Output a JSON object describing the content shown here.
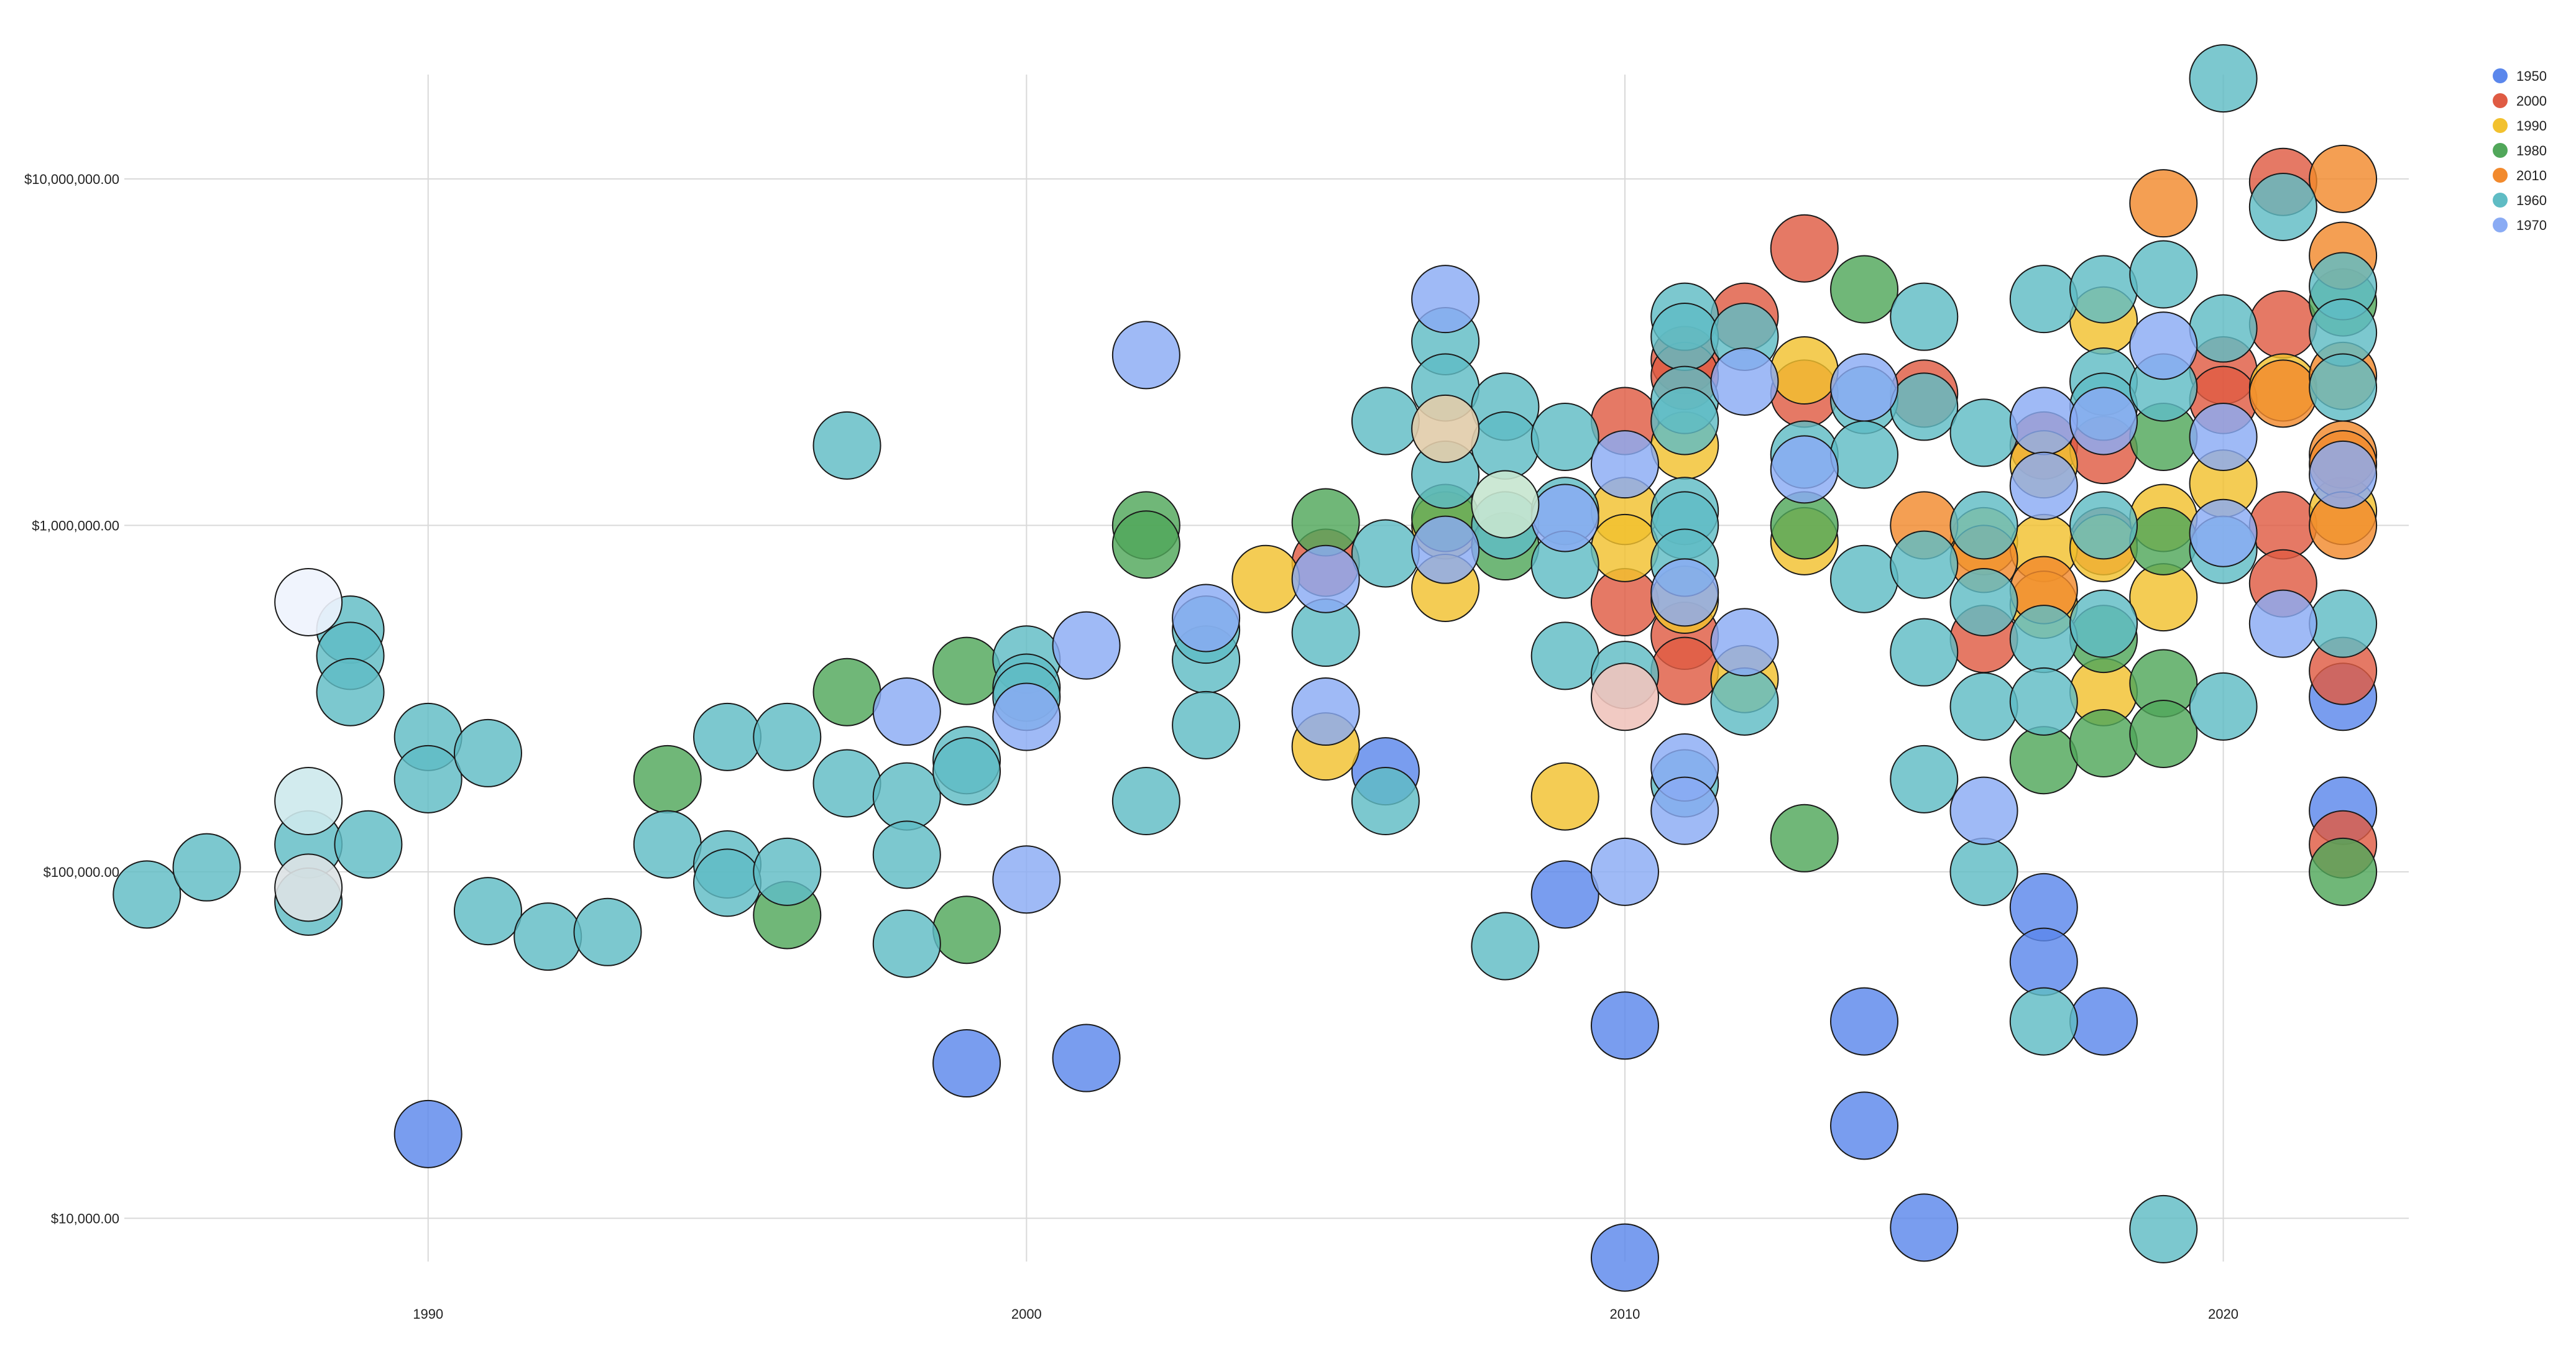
{
  "chart_data": {
    "type": "scatter",
    "subtype": "bubble",
    "title": "",
    "xlabel": "",
    "ylabel": "",
    "y_scale": "log",
    "xlim": [
      1984.3,
      2023.1
    ],
    "ylim": [
      7500,
      20000000
    ],
    "x_ticks": [
      {
        "value": 1990,
        "label": "1990"
      },
      {
        "value": 2000,
        "label": "2000"
      },
      {
        "value": 2010,
        "label": "2010"
      },
      {
        "value": 2020,
        "label": "2020"
      }
    ],
    "y_ticks": [
      {
        "value": 10000,
        "label": "$10,000.00"
      },
      {
        "value": 100000,
        "label": "$100,000.00"
      },
      {
        "value": 1000000,
        "label": "$1,000,000.00"
      },
      {
        "value": 10000000,
        "label": "$10,000,000.00"
      }
    ],
    "grid": true,
    "legend_position": "top-right",
    "series": [
      {
        "name": "1950",
        "color": "#5b87ec",
        "points": [
          [
            1990,
            17500
          ],
          [
            1999,
            28000
          ],
          [
            2001,
            29000
          ],
          [
            2006,
            195000
          ],
          [
            2009,
            86000
          ],
          [
            2010,
            36000
          ],
          [
            2010,
            7700
          ],
          [
            2014,
            37000
          ],
          [
            2014,
            18500
          ],
          [
            2015,
            9400
          ],
          [
            2017,
            79000
          ],
          [
            2017,
            55000
          ],
          [
            2018,
            37000
          ],
          [
            2022,
            150000
          ],
          [
            2022,
            320000
          ]
        ]
      },
      {
        "name": "2000",
        "color": "#df5b43",
        "points": [
          [
            2005,
            780000
          ],
          [
            2010,
            2000000
          ],
          [
            2010,
            600000
          ],
          [
            2011,
            3000000
          ],
          [
            2011,
            2700000
          ],
          [
            2011,
            480000
          ],
          [
            2011,
            380000
          ],
          [
            2012,
            4000000
          ],
          [
            2013,
            6300000
          ],
          [
            2013,
            2400000
          ],
          [
            2015,
            2400000
          ],
          [
            2016,
            470000
          ],
          [
            2017,
            1700000
          ],
          [
            2018,
            1650000
          ],
          [
            2018,
            900000
          ],
          [
            2020,
            2800000
          ],
          [
            2020,
            2300000
          ],
          [
            2021,
            9800000
          ],
          [
            2021,
            3800000
          ],
          [
            2021,
            1000000
          ],
          [
            2021,
            680000
          ],
          [
            2022,
            380000
          ],
          [
            2022,
            120000
          ]
        ]
      },
      {
        "name": "1990",
        "color": "#f2c12e",
        "points": [
          [
            2004,
            700000
          ],
          [
            2005,
            230000
          ],
          [
            2007,
            1000000
          ],
          [
            2007,
            660000
          ],
          [
            2009,
            165000
          ],
          [
            2010,
            1100000
          ],
          [
            2010,
            860000
          ],
          [
            2011,
            1700000
          ],
          [
            2011,
            610000
          ],
          [
            2012,
            360000
          ],
          [
            2013,
            2800000
          ],
          [
            2013,
            900000
          ],
          [
            2016,
            900000
          ],
          [
            2017,
            1500000
          ],
          [
            2017,
            860000
          ],
          [
            2017,
            590000
          ],
          [
            2018,
            3900000
          ],
          [
            2018,
            860000
          ],
          [
            2018,
            330000
          ],
          [
            2019,
            1050000
          ],
          [
            2019,
            620000
          ],
          [
            2020,
            1320000
          ],
          [
            2021,
            2500000
          ],
          [
            2022,
            1100000
          ]
        ]
      },
      {
        "name": "1980",
        "color": "#51a75a",
        "points": [
          [
            1994,
            185000
          ],
          [
            1996,
            75000
          ],
          [
            1997,
            330000
          ],
          [
            1999,
            380000
          ],
          [
            1999,
            68000
          ],
          [
            2002,
            1000000
          ],
          [
            2002,
            880000
          ],
          [
            2005,
            1020000
          ],
          [
            2007,
            1050000
          ],
          [
            2008,
            870000
          ],
          [
            2013,
            125000
          ],
          [
            2013,
            1000000
          ],
          [
            2014,
            4800000
          ],
          [
            2017,
            210000
          ],
          [
            2018,
            235000
          ],
          [
            2018,
            470000
          ],
          [
            2019,
            1800000
          ],
          [
            2019,
            900000
          ],
          [
            2019,
            350000
          ],
          [
            2019,
            250000
          ],
          [
            2022,
            4400000
          ],
          [
            2022,
            100000
          ]
        ]
      },
      {
        "name": "2010",
        "color": "#f28a2d",
        "points": [
          [
            2015,
            1000000
          ],
          [
            2016,
            800000
          ],
          [
            2017,
            650000
          ],
          [
            2019,
            8500000
          ],
          [
            2021,
            2400000
          ],
          [
            2022,
            10000000
          ],
          [
            2022,
            6000000
          ],
          [
            2022,
            2700000
          ],
          [
            2022,
            1600000
          ],
          [
            2022,
            1500000
          ],
          [
            2022,
            1000000
          ]
        ]
      },
      {
        "name": "1960",
        "color": "#5fbcc4",
        "points": [
          [
            1985.3,
            86000
          ],
          [
            1986.3,
            103000
          ],
          [
            1988,
            120000
          ],
          [
            1988,
            82000
          ],
          [
            1988.7,
            500000
          ],
          [
            1988.7,
            420000
          ],
          [
            1988.7,
            330000
          ],
          [
            1989,
            120000
          ],
          [
            1990,
            245000
          ],
          [
            1990,
            185000
          ],
          [
            1991,
            220000
          ],
          [
            1991,
            77000
          ],
          [
            1992,
            65000
          ],
          [
            1993,
            67000
          ],
          [
            1994,
            120000
          ],
          [
            1995,
            245000
          ],
          [
            1995,
            105000
          ],
          [
            1995,
            93000
          ],
          [
            1996,
            245000
          ],
          [
            1996,
            100000
          ],
          [
            1997,
            1700000
          ],
          [
            1997,
            180000
          ],
          [
            1998,
            165000
          ],
          [
            1998,
            112000
          ],
          [
            1998,
            62000
          ],
          [
            1999,
            210000
          ],
          [
            1999,
            195000
          ],
          [
            2000,
            410000
          ],
          [
            2000,
            340000
          ],
          [
            2000,
            320000
          ],
          [
            2002,
            160000
          ],
          [
            2003,
            410000
          ],
          [
            2003,
            265000
          ],
          [
            2003,
            500000
          ],
          [
            2005,
            490000
          ],
          [
            2006,
            2000000
          ],
          [
            2006,
            830000
          ],
          [
            2006,
            160000
          ],
          [
            2007,
            3400000
          ],
          [
            2007,
            2500000
          ],
          [
            2007,
            1400000
          ],
          [
            2008,
            2200000
          ],
          [
            2008,
            1700000
          ],
          [
            2008,
            1000000
          ],
          [
            2008,
            61000
          ],
          [
            2009,
            1800000
          ],
          [
            2009,
            1100000
          ],
          [
            2009,
            770000
          ],
          [
            2009,
            420000
          ],
          [
            2010,
            370000
          ],
          [
            2011,
            4000000
          ],
          [
            2011,
            3500000
          ],
          [
            2011,
            2300000
          ],
          [
            2011,
            2000000
          ],
          [
            2011,
            1100000
          ],
          [
            2011,
            1000000
          ],
          [
            2011,
            780000
          ],
          [
            2011,
            180000
          ],
          [
            2012,
            3500000
          ],
          [
            2012,
            310000
          ],
          [
            2013,
            1600000
          ],
          [
            2014,
            2300000
          ],
          [
            2014,
            1600000
          ],
          [
            2014,
            700000
          ],
          [
            2015,
            4000000
          ],
          [
            2015,
            2200000
          ],
          [
            2015,
            770000
          ],
          [
            2015,
            430000
          ],
          [
            2015,
            185000
          ],
          [
            2016,
            1850000
          ],
          [
            2016,
            1000000
          ],
          [
            2016,
            600000
          ],
          [
            2016,
            300000
          ],
          [
            2016,
            100000
          ],
          [
            2017,
            4500000
          ],
          [
            2017,
            470000
          ],
          [
            2017,
            310000
          ],
          [
            2017,
            37000
          ],
          [
            2018,
            4800000
          ],
          [
            2018,
            2600000
          ],
          [
            2018,
            2200000
          ],
          [
            2018,
            1000000
          ],
          [
            2018,
            520000
          ],
          [
            2019,
            5300000
          ],
          [
            2019,
            2500000
          ],
          [
            2019,
            9300
          ],
          [
            2020,
            3700000
          ],
          [
            2020,
            850000
          ],
          [
            2020,
            300000
          ],
          [
            2020,
            19500000
          ],
          [
            2021,
            8300000
          ],
          [
            2022,
            4900000
          ],
          [
            2022,
            3600000
          ],
          [
            2022,
            2500000
          ],
          [
            2022,
            520000
          ]
        ]
      },
      {
        "name": "1970",
        "color": "#8aabf4",
        "points": [
          [
            1998,
            290000
          ],
          [
            2000,
            280000
          ],
          [
            2000,
            95000
          ],
          [
            2001,
            450000
          ],
          [
            2002,
            3100000
          ],
          [
            2003,
            540000
          ],
          [
            2005,
            700000
          ],
          [
            2005,
            290000
          ],
          [
            2007,
            4500000
          ],
          [
            2007,
            850000
          ],
          [
            2009,
            1050000
          ],
          [
            2010,
            1500000
          ],
          [
            2010,
            100000
          ],
          [
            2011,
            640000
          ],
          [
            2011,
            200000
          ],
          [
            2011,
            150000
          ],
          [
            2012,
            2600000
          ],
          [
            2012,
            460000
          ],
          [
            2013,
            1450000
          ],
          [
            2014,
            2500000
          ],
          [
            2016,
            150000
          ],
          [
            2017,
            2000000
          ],
          [
            2017,
            1300000
          ],
          [
            2018,
            2000000
          ],
          [
            2019,
            3300000
          ],
          [
            2020,
            1800000
          ],
          [
            2020,
            950000
          ],
          [
            2021,
            520000
          ],
          [
            2022,
            1400000
          ]
        ]
      }
    ],
    "highlighted_points": [
      {
        "x": 1988,
        "y": 600000,
        "color": "#eef3fd"
      },
      {
        "x": 1988,
        "y": 160000,
        "color": "#cde9ec"
      },
      {
        "x": 1988,
        "y": 90000,
        "color": "#dde2e4"
      },
      {
        "x": 2007,
        "y": 1900000,
        "color": "#e1ccaa"
      },
      {
        "x": 2008,
        "y": 1150000,
        "color": "#c6e6cf"
      },
      {
        "x": 2010,
        "y": 320000,
        "color": "#efc4bd"
      }
    ]
  }
}
